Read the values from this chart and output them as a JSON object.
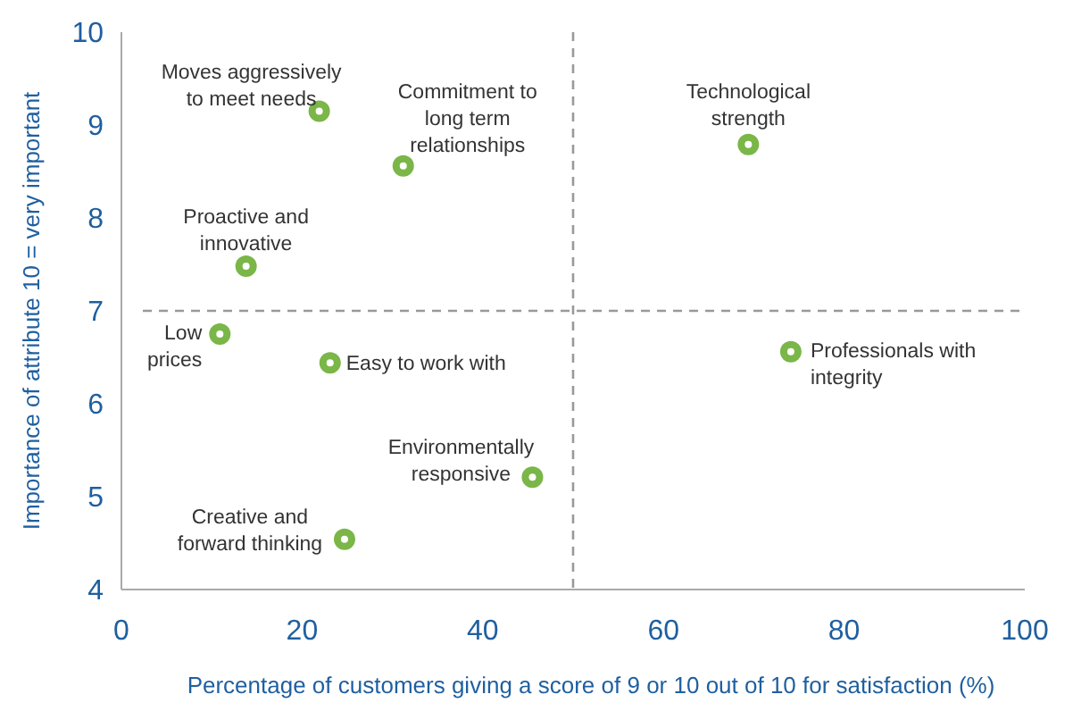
{
  "chart_data": {
    "type": "scatter",
    "xlabel": "Percentage of customers giving a score of 9 or 10 out of 10 for satisfaction (%)",
    "ylabel": "Importance of attribute 10 = very important",
    "xlim": [
      0,
      100
    ],
    "xticks": [
      0,
      20,
      40,
      60,
      80,
      100
    ],
    "ylim": [
      4,
      10
    ],
    "yticks": [
      4,
      5,
      6,
      7,
      8,
      9,
      10
    ],
    "grid": false,
    "marker": "circle",
    "series": [
      {
        "color": "#7ab648",
        "x": [
          21.9,
          31.2,
          69.4,
          13.8,
          10.9,
          23.1,
          74.1,
          45.5,
          24.7
        ],
        "values": [
          9.15,
          8.56,
          8.79,
          7.48,
          6.75,
          6.44,
          6.56,
          5.21,
          4.54
        ]
      }
    ],
    "ref_lines": [
      {
        "axis": "x",
        "value": 50,
        "color": "#999999",
        "line_style": "dashed"
      },
      {
        "axis": "y",
        "value": 7,
        "color": "#999999",
        "line_style": "dashed"
      }
    ],
    "annotations": [
      {
        "text": "Moves aggressively\nto meet needs",
        "x": 21.9,
        "y": 9.15
      },
      {
        "text": "Commitment to\nlong term\nrelationships",
        "x": 31.2,
        "y": 8.56
      },
      {
        "text": "Technological\nstrength",
        "x": 69.4,
        "y": 8.79
      },
      {
        "text": "Proactive and\ninnovative",
        "x": 13.8,
        "y": 7.48
      },
      {
        "text": "Low\nprices",
        "x": 10.9,
        "y": 6.75
      },
      {
        "text": "Easy to work with",
        "x": 23.1,
        "y": 6.44
      },
      {
        "text": "Professionals with\nintegrity",
        "x": 74.1,
        "y": 6.56
      },
      {
        "text": "Environmentally\nresponsive",
        "x": 45.5,
        "y": 5.21
      },
      {
        "text": "Creative and\nforward thinking",
        "x": 24.7,
        "y": 4.54
      }
    ]
  }
}
